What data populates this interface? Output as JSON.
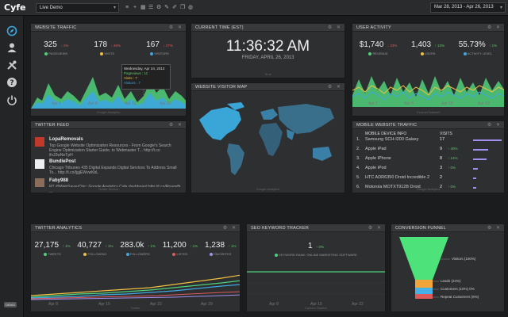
{
  "topbar": {
    "logo": "Cyfe",
    "dashboard_select": "Live Demo",
    "date_range": "Mar 28, 2013 - Apr 26, 2013",
    "tool_icons": [
      "menu-icon",
      "plus-icon",
      "grid-icon",
      "list-icon",
      "settings-icon",
      "edit-icon",
      "brush-icon",
      "copy-icon",
      "globe-icon"
    ]
  },
  "sidenav": {
    "icons": [
      "compass-icon",
      "user-icon",
      "tools-icon",
      "help-icon",
      "power-icon"
    ],
    "badge": "DEMO"
  },
  "colors": {
    "accent_green": "#4fd17a",
    "accent_blue": "#3ea7e0",
    "bar_purple": "#a28ff0",
    "funnel_green": "#4ee37a",
    "funnel_orange": "#f0a43a",
    "funnel_blue": "#46b0e8"
  },
  "website_traffic": {
    "title": "WEBSITE TRAFFIC",
    "stats": [
      {
        "value": "325",
        "change": "↓ 1%",
        "label": "PAGEVIEWS",
        "dot": "#4fd17a"
      },
      {
        "value": "178",
        "change": "↓ 26%",
        "label": "VISITS",
        "dot": "#f0c040"
      },
      {
        "value": "167",
        "change": "↓ 27%",
        "label": "VISITORS",
        "dot": "#3ea7e0"
      }
    ],
    "tooltip": {
      "date": "Wednesday, Apr 24, 2013",
      "line1": "Pageviews : 11",
      "line2": "Visits : 7",
      "line3": "Visitors : 7"
    },
    "x_labels": [
      "Apr 1",
      "Apr 8",
      "Apr 15",
      "Apr 22"
    ],
    "footer": "Google Analytics"
  },
  "current_time": {
    "title": "CURRENT TIME (EST)",
    "time": "11:36:32 AM",
    "date": "FRIDAY, APRIL 26, 2013",
    "footer": "Time"
  },
  "user_activity": {
    "title": "USER ACTIVITY",
    "stats": [
      {
        "value": "$1,740",
        "change": "↓ 23%",
        "label": "REVENUE",
        "dot": "#4fd17a"
      },
      {
        "value": "1,403",
        "change": "↑ 13%",
        "label": "USERS",
        "dot": "#f0c040"
      },
      {
        "value": "55.73%",
        "change": "↑ 1%",
        "label": "ACTIVITY LEVEL",
        "dot": "#3ea7e0"
      }
    ],
    "x_labels": [
      "Apr 1",
      "Apr 8",
      "Apr 15",
      "Apr 22"
    ],
    "footer": "Custom Dataset"
  },
  "visitor_map": {
    "title": "WEBSITE VISITOR MAP",
    "footer": "Google Analytics"
  },
  "twitter_feed": {
    "title": "TWITTER FEED",
    "items": [
      {
        "name": "LopaRemovals",
        "text": "Top Google Website Optimization Resources - From Google's Search Engine Optimization Starter Guide, to Webmaster T... http://t.co ifvJ2wNeTpH"
      },
      {
        "name": "BundlePost",
        "text": "Chicago Tribunes 435 Digital Expands Digital Services To Address Small To... http://t.co/ljgjEWvwKbL"
      },
      {
        "name": "Faby988",
        "text": "RT @WebSavvyChic: Google Analytics Cyfe dashboard http://t.co/Rnagvfh ..."
      }
    ],
    "footer": "Twitter Search"
  },
  "mobile_traffic": {
    "title": "MOBILE WEBSITE TRAFFIC",
    "col_device": "MOBILE DEVICE INFO",
    "col_visits": "VISITS",
    "rows": [
      {
        "rank": "1.",
        "device": "Samsung SCH-I200 Galaxy",
        "visits": "17",
        "change": "",
        "bar": 1.0
      },
      {
        "rank": "2.",
        "device": "Apple iPad",
        "visits": "9",
        "change": "↑ 40%",
        "bar": 0.53
      },
      {
        "rank": "3.",
        "device": "Apple iPhone",
        "visits": "8",
        "change": "↑ 14%",
        "bar": 0.47
      },
      {
        "rank": "4.",
        "device": "Apple iPod",
        "visits": "3",
        "change": "↑ 0%",
        "bar": 0.18
      },
      {
        "rank": "5.",
        "device": "HTC ADR6350 Droid Incredible 2",
        "visits": "2",
        "change": "",
        "bar": 0.12
      },
      {
        "rank": "6.",
        "device": "Motorola MOTXT912B Droid",
        "visits": "2",
        "change": "↑ 0%",
        "bar": 0.12
      }
    ],
    "footer": "Google Analytics"
  },
  "twitter_analytics": {
    "title": "TWITTER ANALYTICS",
    "stats": [
      {
        "value": "27,175",
        "change": "↑ 1%",
        "label": "TWEETS",
        "dot": "#4fd17a"
      },
      {
        "value": "40,727",
        "change": "↑ 1%",
        "label": "FOLLOWING",
        "dot": "#f0c040"
      },
      {
        "value": "283.0k",
        "change": "↑ 1%",
        "label": "FOLLOWERS",
        "dot": "#3ea7e0"
      },
      {
        "value": "11,200",
        "change": "↑ 1%",
        "label": "LISTED",
        "dot": "#e05a5a"
      },
      {
        "value": "1,238",
        "change": "↑ 1%",
        "label": "FAVORITES",
        "dot": "#a28ff0"
      }
    ],
    "x_labels": [
      "Apr 8",
      "Apr 15",
      "Apr 22",
      "Apr 29"
    ],
    "footer": "Twitter"
  },
  "seo_tracker": {
    "title": "SEO KEYWORD TRACKER",
    "value": "1",
    "change": "↑ 0%",
    "label": "KEYWORD RANK: ONLINE MARKETING SOFTWARE",
    "x_labels": [
      "Apr 8",
      "Apr 15",
      "Apr 22"
    ],
    "footer": "Custom Tracker"
  },
  "conversion_funnel": {
    "title": "CONVERSION FUNNEL",
    "steps": [
      {
        "label": "Visitors (100%)"
      },
      {
        "label": "Leads (24%)"
      },
      {
        "label": "Customers (10%) 0%"
      },
      {
        "label": "Repeat Customers (6%)"
      }
    ]
  }
}
